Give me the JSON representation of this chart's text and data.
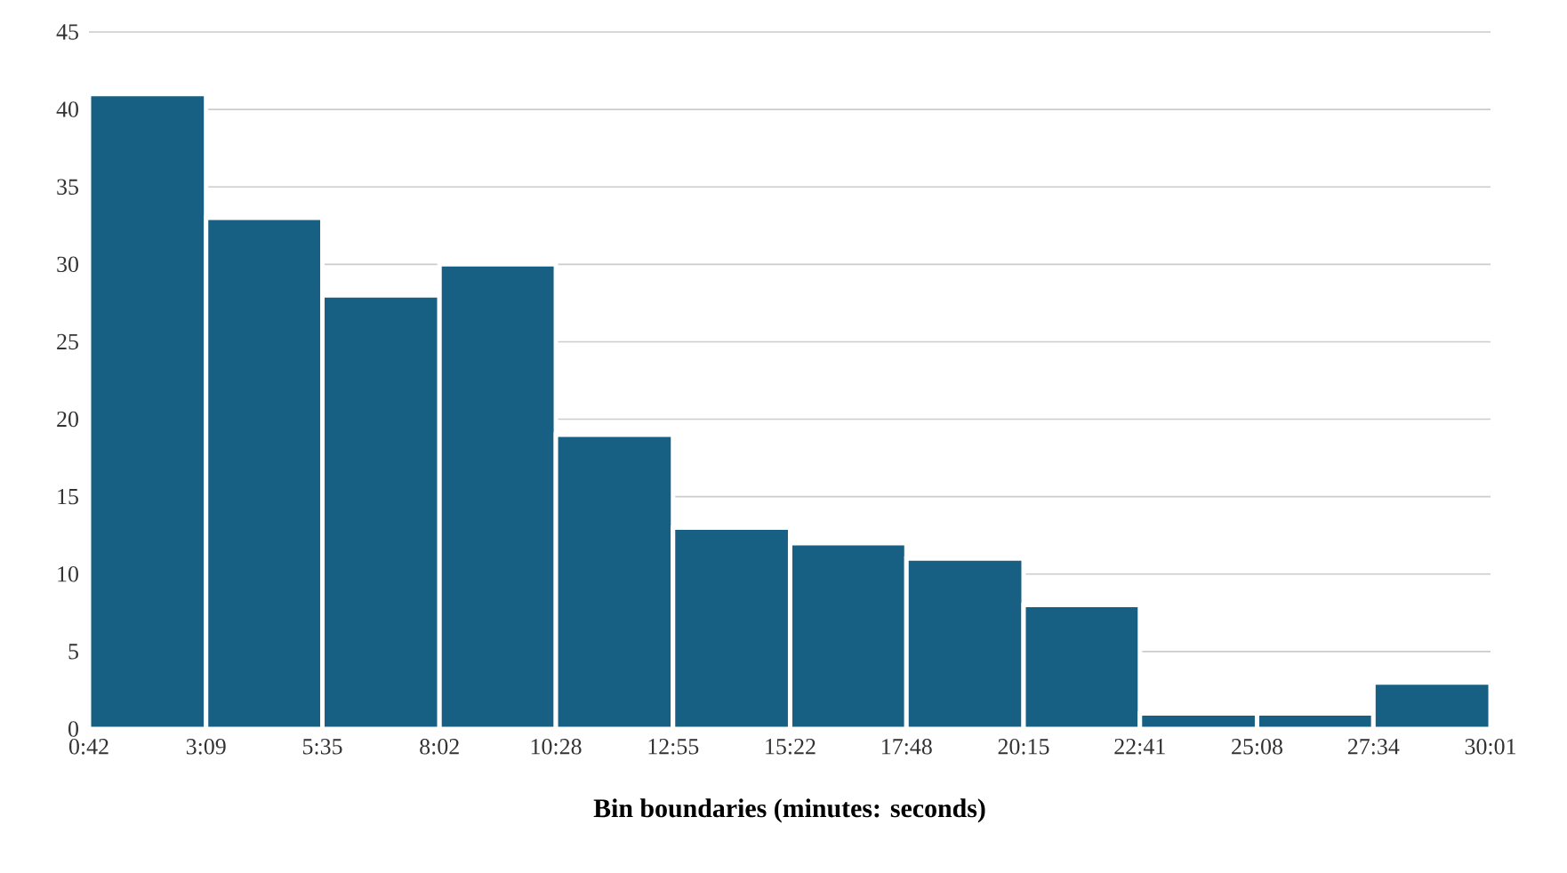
{
  "chart_data": {
    "type": "histogram",
    "xlabel": "Bin boundaries (minutes: seconds)",
    "bins": [
      0.7,
      3.15,
      5.583,
      8.033,
      10.467,
      12.917,
      15.367,
      17.8,
      20.25,
      22.683,
      25.133,
      27.567,
      30.017
    ],
    "values": [
      41,
      33,
      28,
      30,
      19,
      13,
      12,
      11,
      8,
      1,
      1,
      3
    ],
    "color": "#175f83",
    "xlim": [
      0.7,
      30.017
    ],
    "xticks": [
      {
        "value": 0.7,
        "label": "0:42"
      },
      {
        "value": 3.15,
        "label": "3:09"
      },
      {
        "value": 5.583,
        "label": "5:35"
      },
      {
        "value": 8.033,
        "label": "8:02"
      },
      {
        "value": 10.467,
        "label": "10:28"
      },
      {
        "value": 12.917,
        "label": "12:55"
      },
      {
        "value": 15.367,
        "label": "15:22"
      },
      {
        "value": 17.8,
        "label": "17:48"
      },
      {
        "value": 20.25,
        "label": "20:15"
      },
      {
        "value": 22.683,
        "label": "22:41"
      },
      {
        "value": 25.133,
        "label": "25:08"
      },
      {
        "value": 27.567,
        "label": "27:34"
      },
      {
        "value": 30.017,
        "label": "30:01"
      }
    ],
    "ylim": [
      0,
      45
    ],
    "yticks": [
      0,
      5,
      10,
      15,
      20,
      25,
      30,
      35,
      40,
      45
    ],
    "grid": "y"
  }
}
